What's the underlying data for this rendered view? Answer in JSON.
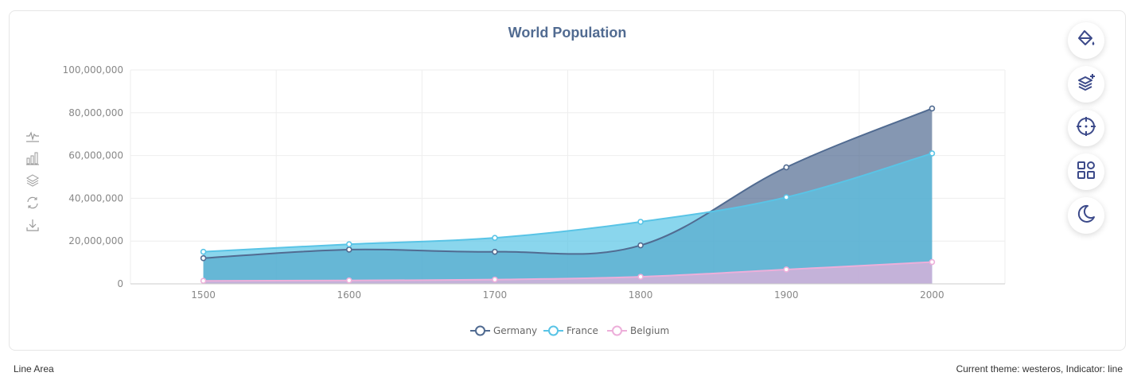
{
  "chart_data": {
    "type": "area",
    "title": "World Population",
    "categories": [
      "1500",
      "1600",
      "1700",
      "1800",
      "1900",
      "2000"
    ],
    "ylim": [
      0,
      100000000
    ],
    "yticks": [
      "0",
      "20,000,000",
      "40,000,000",
      "60,000,000",
      "80,000,000",
      "100,000,000"
    ],
    "ytick_values": [
      0,
      20000000,
      40000000,
      60000000,
      80000000,
      100000000
    ],
    "series": [
      {
        "name": "Germany",
        "color": "#516b91",
        "values": [
          12000000,
          16000000,
          15000000,
          18000000,
          54500000,
          82000000
        ]
      },
      {
        "name": "France",
        "color": "#59c4e6",
        "values": [
          15000000,
          18500000,
          21500000,
          29000000,
          40500000,
          61000000
        ]
      },
      {
        "name": "Belgium",
        "color": "#edafda",
        "values": [
          1400000,
          1600000,
          2000000,
          3300000,
          6700000,
          10200000
        ]
      }
    ],
    "legend_position": "bottom-center",
    "grid": true
  },
  "toolbox": {
    "icons": [
      "line-chart-icon",
      "bar-chart-icon",
      "stack-icon",
      "restore-icon",
      "download-icon"
    ]
  },
  "side_buttons": {
    "icons": [
      "paint-bucket-icon",
      "layers-add-icon",
      "crosshair-icon",
      "grid-apps-icon",
      "moon-icon"
    ]
  },
  "footer": {
    "left": "Line Area",
    "right": "Current theme: westeros, Indicator: line"
  }
}
